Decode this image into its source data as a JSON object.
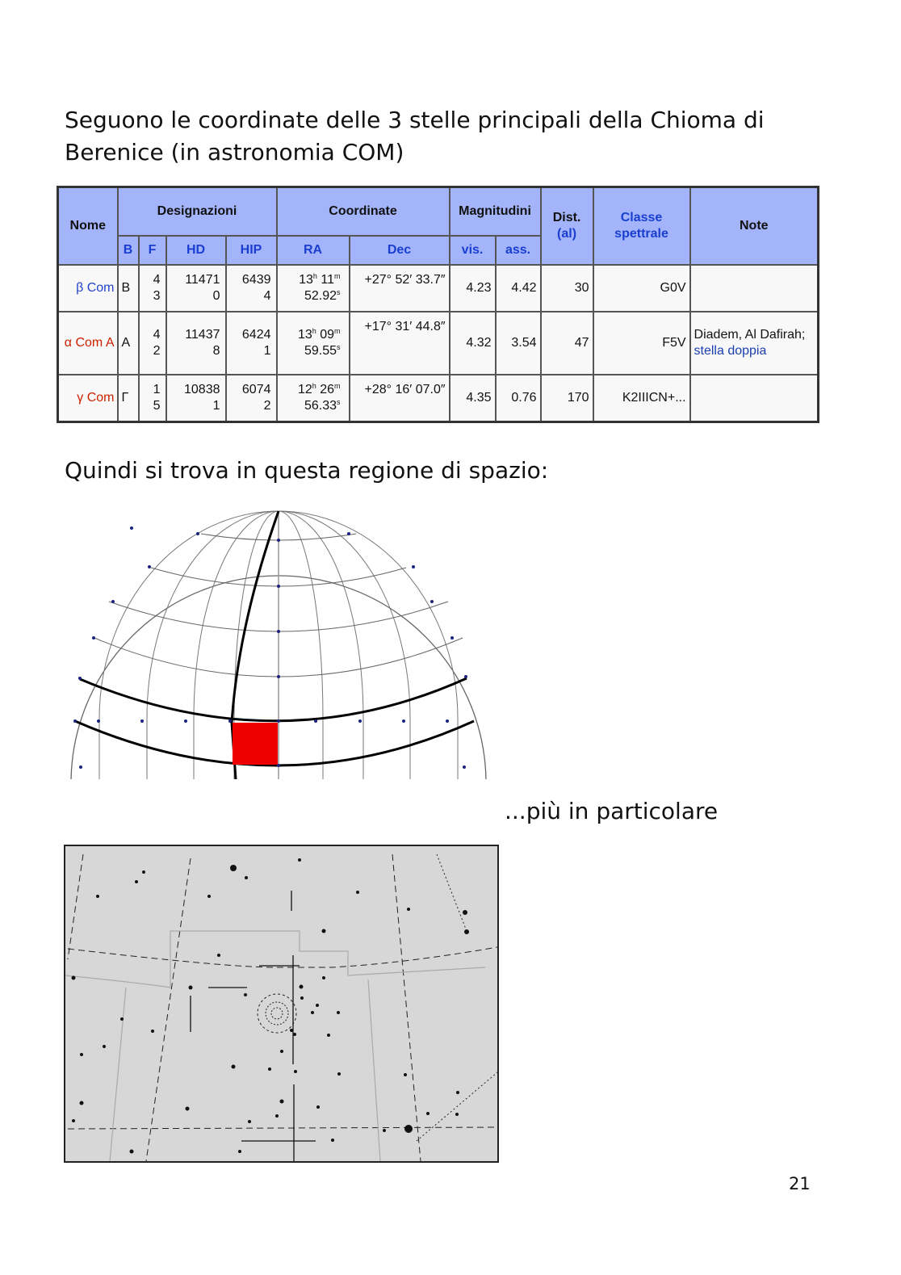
{
  "intro": "Seguono le coordinate delle 3 stelle principali della Chioma di Berenice (in astronomia COM)",
  "table": {
    "headers": {
      "nome": "Nome",
      "designazioni": "Designazioni",
      "coordinate": "Coordinate",
      "magnitudini": "Magnitudini",
      "dist": "Dist.",
      "dist_unit": "(al)",
      "classe": "Classe spettrale",
      "note": "Note",
      "b": "B",
      "f": "F",
      "hd": "HD",
      "hip": "HIP",
      "ra": "RA",
      "dec": "Dec",
      "vis": "vis.",
      "ass": "ass."
    },
    "rows": [
      {
        "nome": "β Com",
        "b": "B",
        "f": "43",
        "hd": "114710",
        "hip": "64394",
        "ra_h": "13",
        "ra_m": "11",
        "ra_s": "52.92",
        "dec": "+27° 52′ 33.7″",
        "vis": "4.23",
        "ass": "4.42",
        "dist": "30",
        "classe": "G0V",
        "note": "",
        "note_link": ""
      },
      {
        "nome": "α Com A",
        "b": "A",
        "f": "42",
        "hd": "114378",
        "hip": "64241",
        "ra_h": "13",
        "ra_m": "09",
        "ra_s": "59.55",
        "dec": "+17° 31′ 44.8″",
        "vis": "4.32",
        "ass": "3.54",
        "dist": "47",
        "classe": "F5V",
        "note": "Diadem, Al Dafirah; ",
        "note_link": "stella doppia"
      },
      {
        "nome": "γ Com",
        "b": "Γ",
        "f": "15",
        "hd": "108381",
        "hip": "60742",
        "ra_h": "12",
        "ra_m": "26",
        "ra_s": "56.33",
        "dec": "+28° 16′ 07.0″",
        "vis": "4.35",
        "ass": "0.76",
        "dist": "170",
        "classe": "K2IIICN+...",
        "note": "",
        "note_link": ""
      }
    ],
    "units": {
      "h": "h",
      "m": "m",
      "s": "s"
    }
  },
  "region": "Quindi si trova in questa regione di spazio:",
  "particular": "...più in particolare",
  "page_number": "21",
  "colors": {
    "header_bg": "#a3b4fb",
    "highlight": "#ee0000",
    "chart_bg": "#d7d7d7",
    "name_blue": "#2244cc",
    "name_red": "#cc2200"
  }
}
